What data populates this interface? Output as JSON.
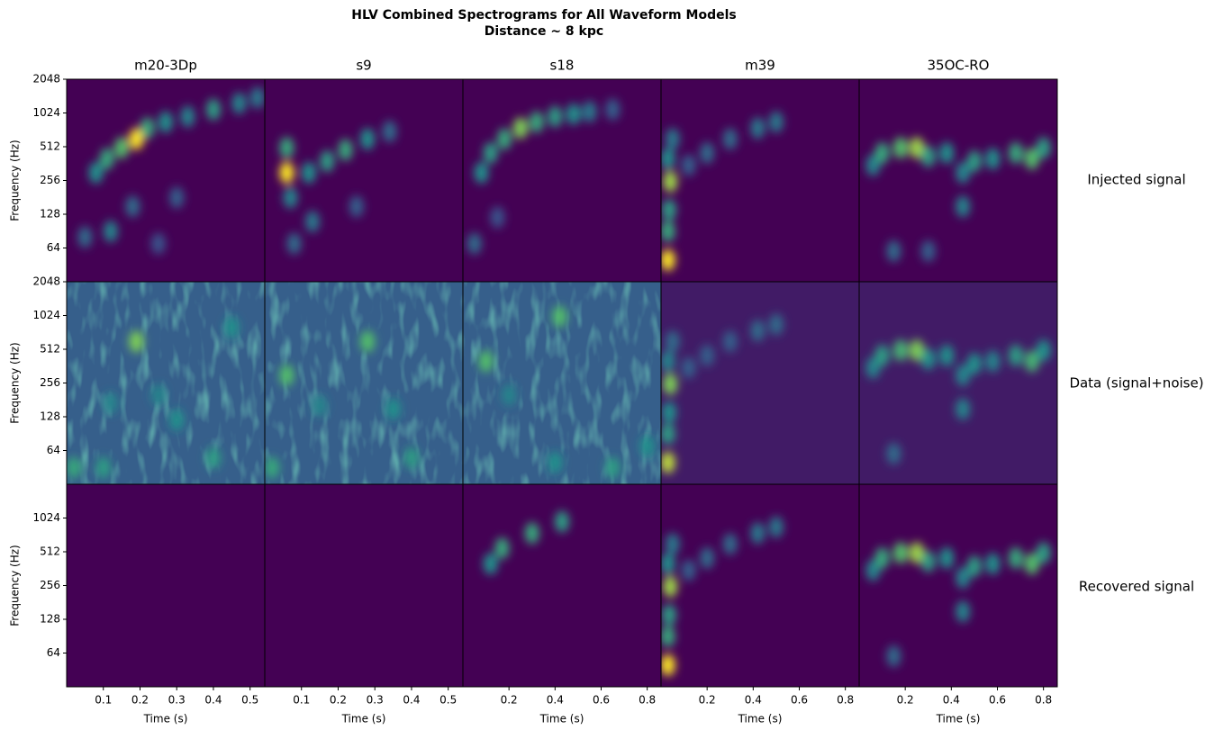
{
  "figure": {
    "title": [
      "HLV Combined Spectrograms for All Waveform Models",
      "Distance ~ 8 kpc"
    ],
    "row_labels": [
      "Injected signal",
      "Data (signal+noise)",
      "Recovered signal"
    ]
  },
  "chart_data": [
    {
      "type": "heatmap",
      "title": "m20-3Dp",
      "ylabel": "Frequency (Hz)",
      "xlim": [
        0,
        0.54
      ],
      "ylim": [
        32,
        2048
      ],
      "yscale": "log2",
      "yticks": [
        64,
        128,
        256,
        512,
        1024,
        2048
      ],
      "colormap": "viridis",
      "background": 0,
      "spots": {
        "x": [
          0.08,
          0.11,
          0.15,
          0.19,
          0.22,
          0.27,
          0.33,
          0.4,
          0.47,
          0.52,
          0.12,
          0.18,
          0.05,
          0.3,
          0.25
        ],
        "y": [
          300,
          400,
          500,
          600,
          750,
          850,
          950,
          1100,
          1250,
          1400,
          90,
          150,
          80,
          180,
          70
        ],
        "values": [
          0.5,
          0.6,
          0.7,
          1,
          0.6,
          0.5,
          0.45,
          0.55,
          0.45,
          0.4,
          0.45,
          0.35,
          0.35,
          0.3,
          0.25
        ]
      }
    },
    {
      "type": "heatmap",
      "title": "s9",
      "xlim": [
        0,
        0.54
      ],
      "ylim": [
        32,
        2048
      ],
      "yscale": "log2",
      "colormap": "viridis",
      "background": 0,
      "spots": {
        "x": [
          0.06,
          0.06,
          0.07,
          0.12,
          0.17,
          0.22,
          0.28,
          0.34,
          0.13,
          0.25,
          0.08
        ],
        "y": [
          300,
          500,
          180,
          300,
          380,
          480,
          600,
          700,
          110,
          150,
          70
        ],
        "values": [
          1,
          0.6,
          0.45,
          0.5,
          0.55,
          0.6,
          0.5,
          0.35,
          0.4,
          0.3,
          0.35
        ]
      }
    },
    {
      "type": "heatmap",
      "title": "s18",
      "xlim": [
        0,
        0.86
      ],
      "ylim": [
        32,
        2048
      ],
      "yscale": "log2",
      "colormap": "viridis",
      "background": 0,
      "spots": {
        "x": [
          0.08,
          0.12,
          0.18,
          0.25,
          0.32,
          0.4,
          0.48,
          0.55,
          0.65,
          0.05,
          0.15
        ],
        "y": [
          300,
          450,
          600,
          750,
          850,
          950,
          1000,
          1050,
          1100,
          70,
          120
        ],
        "values": [
          0.5,
          0.55,
          0.6,
          0.8,
          0.6,
          0.55,
          0.5,
          0.4,
          0.3,
          0.35,
          0.25
        ]
      }
    },
    {
      "type": "heatmap",
      "title": "m39",
      "xlim": [
        0,
        0.86
      ],
      "ylim": [
        32,
        2048
      ],
      "yscale": "log2",
      "colormap": "viridis",
      "background": 0,
      "spots": {
        "x": [
          0.03,
          0.03,
          0.035,
          0.04,
          0.03,
          0.05,
          0.12,
          0.2,
          0.3,
          0.42,
          0.5
        ],
        "y": [
          50,
          90,
          140,
          250,
          400,
          600,
          350,
          450,
          600,
          750,
          850
        ],
        "values": [
          1,
          0.6,
          0.55,
          0.85,
          0.5,
          0.4,
          0.3,
          0.35,
          0.35,
          0.4,
          0.4
        ]
      }
    },
    {
      "type": "heatmap",
      "title": "35OC-RO",
      "xlim": [
        0,
        0.86
      ],
      "ylim": [
        32,
        2048
      ],
      "yscale": "log2",
      "colormap": "viridis",
      "background": 0,
      "spots": {
        "x": [
          0.06,
          0.1,
          0.18,
          0.25,
          0.3,
          0.38,
          0.45,
          0.5,
          0.58,
          0.68,
          0.75,
          0.8,
          0.45,
          0.15,
          0.3
        ],
        "y": [
          350,
          450,
          500,
          500,
          420,
          450,
          300,
          380,
          400,
          450,
          400,
          500,
          150,
          60,
          60
        ],
        "values": [
          0.45,
          0.6,
          0.7,
          0.85,
          0.55,
          0.5,
          0.45,
          0.55,
          0.5,
          0.6,
          0.7,
          0.55,
          0.45,
          0.35,
          0.3
        ]
      }
    },
    {
      "type": "heatmap",
      "ylabel": "Frequency (Hz)",
      "xlim": [
        0,
        0.54
      ],
      "ylim": [
        32,
        2048
      ],
      "yscale": "log2",
      "yticks": [
        64,
        128,
        256,
        512,
        1024,
        2048
      ],
      "colormap": "viridis",
      "background": 0.3,
      "spots": {
        "x": [
          0.19,
          0.1,
          0.3,
          0.4,
          0.02,
          0.45,
          0.12,
          0.25
        ],
        "y": [
          600,
          45,
          120,
          55,
          45,
          800,
          170,
          200
        ],
        "values": [
          0.8,
          0.55,
          0.5,
          0.55,
          0.6,
          0.5,
          0.45,
          0.45
        ]
      }
    },
    {
      "type": "heatmap",
      "xlim": [
        0,
        0.54
      ],
      "ylim": [
        32,
        2048
      ],
      "yscale": "log2",
      "colormap": "viridis",
      "background": 0.3,
      "spots": {
        "x": [
          0.06,
          0.28,
          0.02,
          0.4,
          0.15,
          0.35
        ],
        "y": [
          300,
          600,
          45,
          55,
          160,
          150
        ],
        "values": [
          0.7,
          0.7,
          0.6,
          0.55,
          0.45,
          0.5
        ]
      }
    },
    {
      "type": "heatmap",
      "xlim": [
        0,
        0.86
      ],
      "ylim": [
        32,
        2048
      ],
      "yscale": "log2",
      "colormap": "viridis",
      "background": 0.3,
      "spots": {
        "x": [
          0.1,
          0.42,
          0.4,
          0.2,
          0.65,
          0.8
        ],
        "y": [
          400,
          1000,
          50,
          200,
          45,
          70
        ],
        "values": [
          0.7,
          0.7,
          0.5,
          0.45,
          0.55,
          0.5
        ]
      }
    },
    {
      "type": "heatmap",
      "xlim": [
        0,
        0.86
      ],
      "ylim": [
        32,
        2048
      ],
      "yscale": "log2",
      "colormap": "viridis",
      "background": 0.08,
      "spots": {
        "x": [
          0.03,
          0.03,
          0.035,
          0.04,
          0.03,
          0.05,
          0.12,
          0.2,
          0.3,
          0.42,
          0.5
        ],
        "y": [
          50,
          90,
          140,
          250,
          400,
          600,
          350,
          450,
          600,
          750,
          850
        ],
        "values": [
          0.9,
          0.55,
          0.5,
          0.8,
          0.45,
          0.35,
          0.3,
          0.3,
          0.3,
          0.35,
          0.35
        ]
      }
    },
    {
      "type": "heatmap",
      "xlim": [
        0,
        0.86
      ],
      "ylim": [
        32,
        2048
      ],
      "yscale": "log2",
      "colormap": "viridis",
      "background": 0.08,
      "spots": {
        "x": [
          0.06,
          0.1,
          0.18,
          0.25,
          0.3,
          0.38,
          0.45,
          0.5,
          0.58,
          0.68,
          0.75,
          0.8,
          0.45,
          0.15
        ],
        "y": [
          350,
          450,
          500,
          500,
          420,
          450,
          300,
          380,
          400,
          450,
          400,
          500,
          150,
          60
        ],
        "values": [
          0.45,
          0.55,
          0.65,
          0.8,
          0.5,
          0.5,
          0.45,
          0.5,
          0.45,
          0.55,
          0.65,
          0.5,
          0.45,
          0.35
        ]
      }
    },
    {
      "type": "heatmap",
      "ylabel": "Frequency (Hz)",
      "xlabel": "Time (s)",
      "xlim": [
        0,
        0.54
      ],
      "xticks": [
        0.1,
        0.2,
        0.3,
        0.4,
        0.5
      ],
      "ylim": [
        32,
        2048
      ],
      "yscale": "log2",
      "yticks": [
        64,
        128,
        256,
        512,
        1024
      ],
      "colormap": "viridis",
      "background": 0,
      "spots": {
        "x": [],
        "y": [],
        "values": []
      }
    },
    {
      "type": "heatmap",
      "xlabel": "Time (s)",
      "xlim": [
        0,
        0.54
      ],
      "xticks": [
        0.1,
        0.2,
        0.3,
        0.4,
        0.5
      ],
      "ylim": [
        32,
        2048
      ],
      "yscale": "log2",
      "colormap": "viridis",
      "background": 0,
      "spots": {
        "x": [],
        "y": [],
        "values": []
      }
    },
    {
      "type": "heatmap",
      "xlabel": "Time (s)",
      "xlim": [
        0,
        0.86
      ],
      "xticks": [
        0.2,
        0.4,
        0.6,
        0.8
      ],
      "ylim": [
        32,
        2048
      ],
      "yscale": "log2",
      "colormap": "viridis",
      "background": 0,
      "spots": {
        "x": [
          0.12,
          0.17,
          0.3,
          0.43
        ],
        "y": [
          400,
          550,
          750,
          950
        ],
        "values": [
          0.5,
          0.6,
          0.6,
          0.55
        ]
      }
    },
    {
      "type": "heatmap",
      "xlabel": "Time (s)",
      "xlim": [
        0,
        0.86
      ],
      "xticks": [
        0.2,
        0.4,
        0.6,
        0.8
      ],
      "ylim": [
        32,
        2048
      ],
      "yscale": "log2",
      "colormap": "viridis",
      "background": 0,
      "spots": {
        "x": [
          0.03,
          0.03,
          0.035,
          0.04,
          0.03,
          0.05,
          0.12,
          0.2,
          0.3,
          0.42,
          0.5
        ],
        "y": [
          50,
          90,
          140,
          250,
          400,
          600,
          350,
          450,
          600,
          750,
          850
        ],
        "values": [
          1,
          0.6,
          0.55,
          0.85,
          0.5,
          0.4,
          0.3,
          0.35,
          0.35,
          0.4,
          0.4
        ]
      }
    },
    {
      "type": "heatmap",
      "xlabel": "Time (s)",
      "xlim": [
        0,
        0.86
      ],
      "xticks": [
        0.2,
        0.4,
        0.6,
        0.8
      ],
      "ylim": [
        32,
        2048
      ],
      "yscale": "log2",
      "colormap": "viridis",
      "background": 0,
      "spots": {
        "x": [
          0.06,
          0.1,
          0.18,
          0.25,
          0.3,
          0.38,
          0.45,
          0.5,
          0.58,
          0.68,
          0.75,
          0.8,
          0.45,
          0.15
        ],
        "y": [
          350,
          450,
          500,
          500,
          420,
          450,
          300,
          380,
          400,
          450,
          400,
          500,
          150,
          60
        ],
        "values": [
          0.45,
          0.6,
          0.7,
          0.85,
          0.55,
          0.5,
          0.45,
          0.55,
          0.5,
          0.6,
          0.7,
          0.55,
          0.45,
          0.35
        ]
      }
    }
  ]
}
